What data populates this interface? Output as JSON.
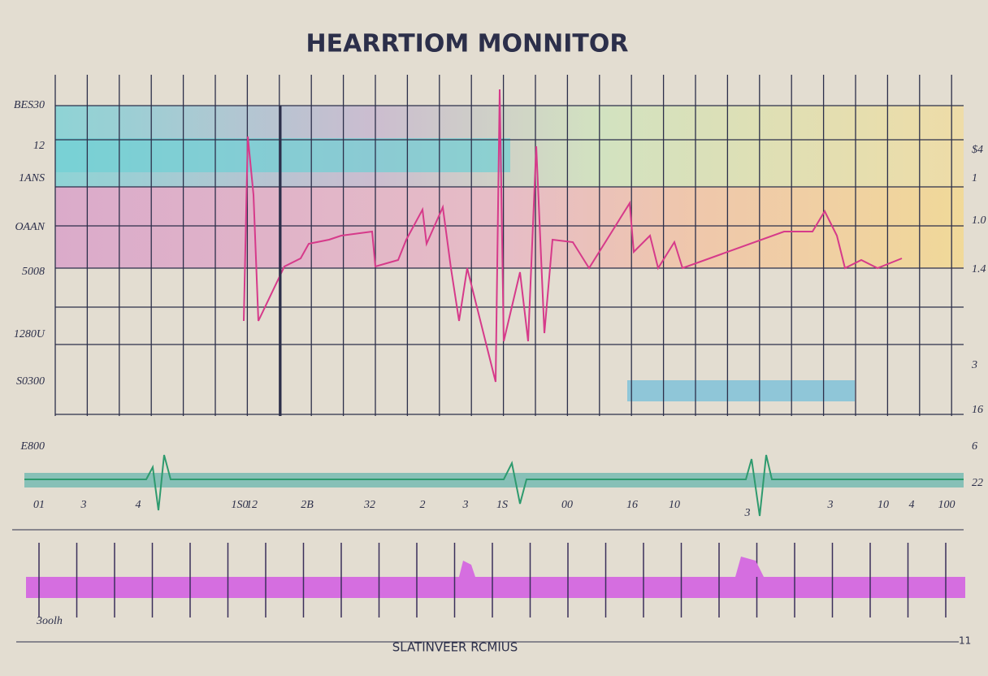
{
  "header": {
    "title": "HEARRTIOM MONNITOR"
  },
  "left_labels": [
    "BES30",
    "12",
    "1ANS",
    "OAAN",
    "5008",
    "1280U",
    "S0300",
    "E800"
  ],
  "right_labels": [
    "$4",
    "1",
    "1.0",
    "1.4",
    "3",
    "16",
    "6",
    "22"
  ],
  "bottom_labels": [
    "01",
    "3",
    "4",
    "1S0",
    "12",
    "2B",
    "32",
    "2",
    "3",
    "1S",
    "00",
    "16",
    "10",
    "3",
    "3",
    "10",
    "4",
    "100"
  ],
  "lower_label": "3oolh",
  "footer": {
    "caption": "SLATINVEER RCMIUS",
    "number": "11"
  }
}
